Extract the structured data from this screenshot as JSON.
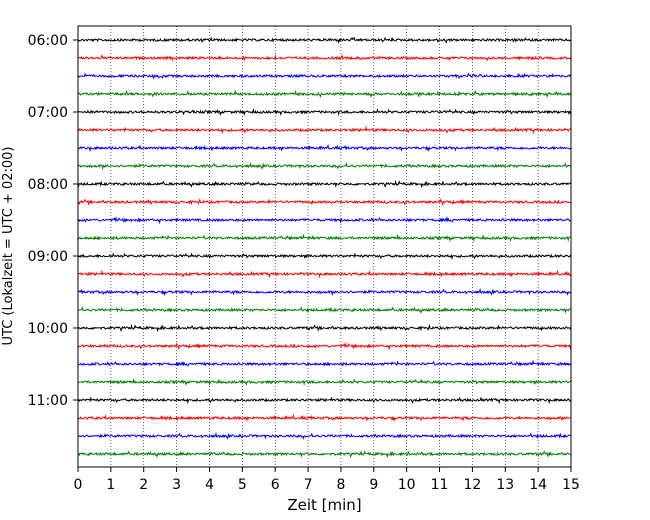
{
  "chart_data": {
    "type": "line",
    "title": "",
    "xlabel": "Zeit  [min]",
    "ylabel": "UTC (Lokalzeit = UTC + 02:00)",
    "xlim": [
      0,
      15
    ],
    "x_ticks": [
      "0",
      "1",
      "2",
      "3",
      "4",
      "5",
      "6",
      "7",
      "8",
      "9",
      "10",
      "11",
      "12",
      "13",
      "14",
      "15"
    ],
    "y_ticks": [
      "06:00",
      "07:00",
      "08:00",
      "09:00",
      "10:00",
      "11:00"
    ],
    "grid": "vertical dotted",
    "trace_colors": [
      "#000000",
      "#ff0000",
      "#0000ff",
      "#008000"
    ],
    "rows": [
      {
        "start": "06:00",
        "color": "#000000"
      },
      {
        "start": "06:15",
        "color": "#ff0000"
      },
      {
        "start": "06:30",
        "color": "#0000ff"
      },
      {
        "start": "06:45",
        "color": "#008000"
      },
      {
        "start": "07:00",
        "color": "#000000"
      },
      {
        "start": "07:15",
        "color": "#ff0000"
      },
      {
        "start": "07:30",
        "color": "#0000ff"
      },
      {
        "start": "07:45",
        "color": "#008000"
      },
      {
        "start": "08:00",
        "color": "#000000"
      },
      {
        "start": "08:15",
        "color": "#ff0000"
      },
      {
        "start": "08:30",
        "color": "#0000ff"
      },
      {
        "start": "08:45",
        "color": "#008000"
      },
      {
        "start": "09:00",
        "color": "#000000"
      },
      {
        "start": "09:15",
        "color": "#ff0000"
      },
      {
        "start": "09:30",
        "color": "#0000ff"
      },
      {
        "start": "09:45",
        "color": "#008000"
      },
      {
        "start": "10:00",
        "color": "#000000"
      },
      {
        "start": "10:15",
        "color": "#ff0000"
      },
      {
        "start": "10:30",
        "color": "#0000ff"
      },
      {
        "start": "10:45",
        "color": "#008000"
      },
      {
        "start": "11:00",
        "color": "#000000"
      },
      {
        "start": "11:15",
        "color": "#ff0000"
      },
      {
        "start": "11:30",
        "color": "#0000ff"
      },
      {
        "start": "11:45",
        "color": "#008000"
      }
    ]
  }
}
